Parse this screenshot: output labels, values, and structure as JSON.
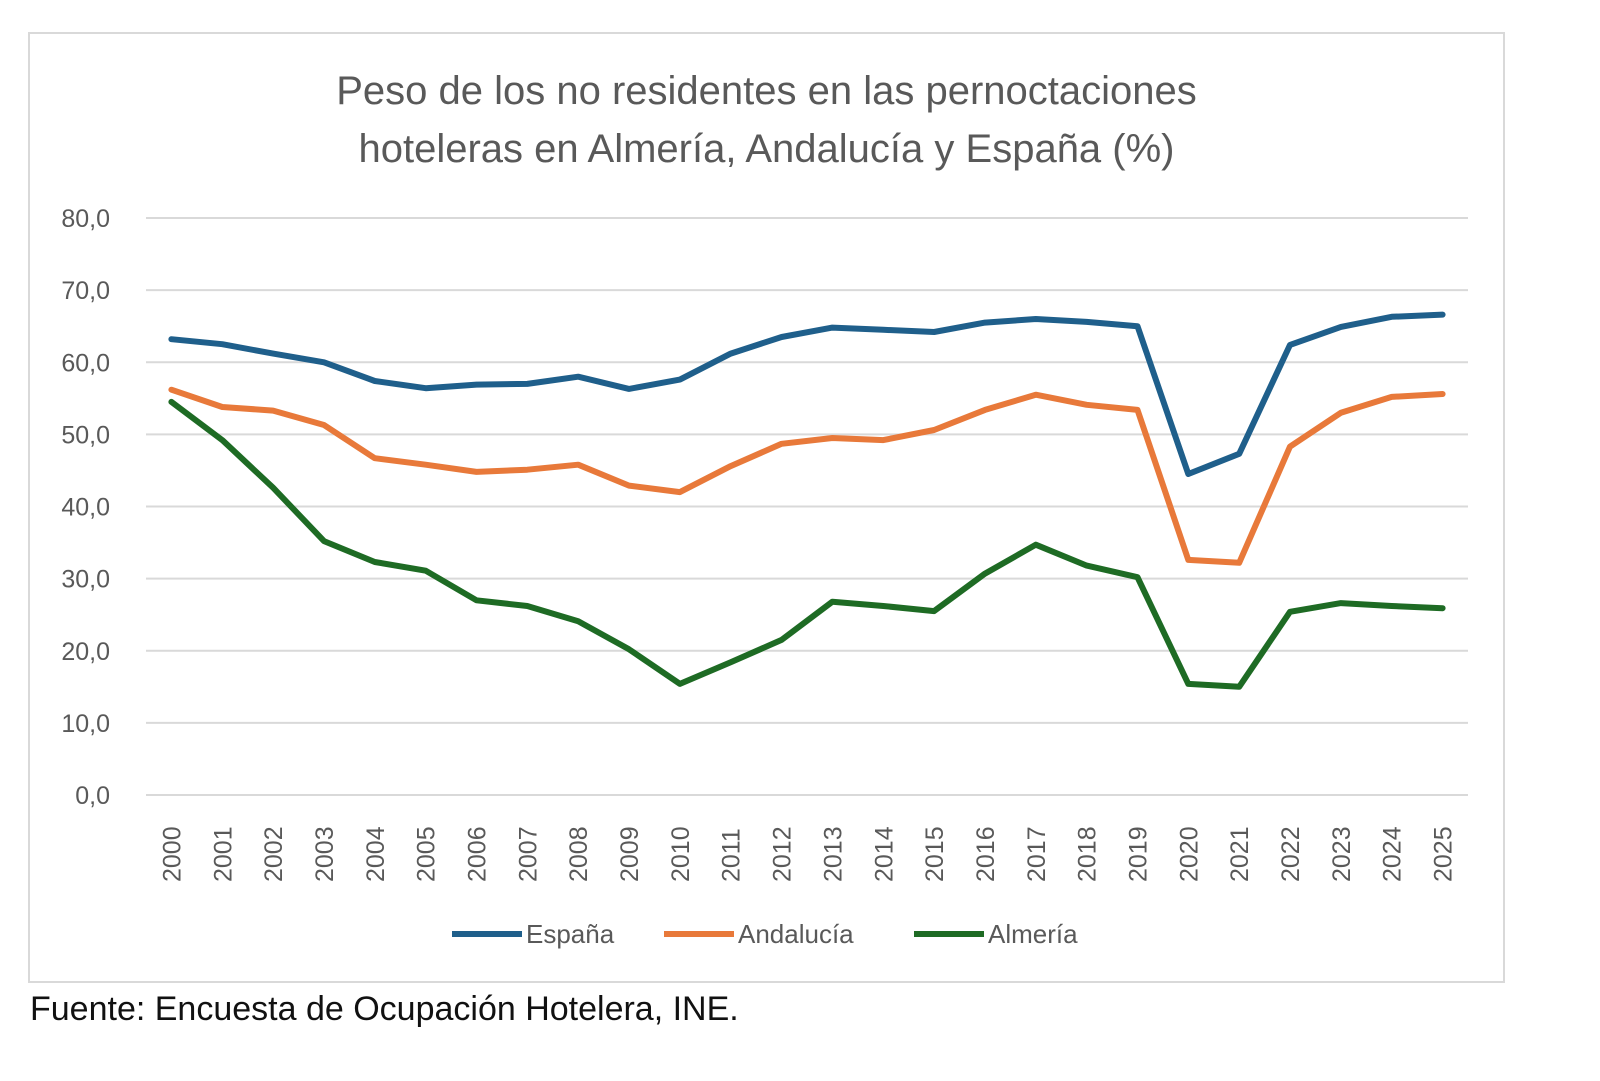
{
  "chart_data": {
    "type": "line",
    "title_lines": [
      "Peso de los no residentes en las pernoctaciones",
      "hoteleras en Almería, Andalucía y España (%)"
    ],
    "xlabel": "",
    "ylabel": "",
    "ylim": [
      0,
      80
    ],
    "yticks": [
      "0,0",
      "10,0",
      "20,0",
      "30,0",
      "40,0",
      "50,0",
      "60,0",
      "70,0",
      "80,0"
    ],
    "grid": true,
    "legend_position": "bottom",
    "categories": [
      "2000",
      "2001",
      "2002",
      "2003",
      "2004",
      "2005",
      "2006",
      "2007",
      "2008",
      "2009",
      "2010",
      "2011",
      "2012",
      "2013",
      "2014",
      "2015",
      "2016",
      "2017",
      "2018",
      "2019",
      "2020",
      "2021",
      "2022",
      "2023",
      "2024",
      "2025"
    ],
    "series": [
      {
        "name": "España",
        "color": "#1f5f8b",
        "values": [
          63.2,
          62.5,
          61.2,
          60.0,
          57.4,
          56.4,
          56.9,
          57.0,
          58.0,
          56.3,
          57.6,
          61.2,
          63.5,
          64.8,
          64.5,
          64.2,
          65.5,
          66.0,
          65.6,
          65.0,
          44.5,
          47.3,
          62.4,
          64.9,
          66.3,
          66.6
        ]
      },
      {
        "name": "Andalucía",
        "color": "#e8793a",
        "values": [
          56.2,
          53.8,
          53.3,
          51.3,
          46.7,
          45.8,
          44.8,
          45.1,
          45.8,
          42.9,
          42.0,
          45.6,
          48.7,
          49.5,
          49.2,
          50.6,
          53.4,
          55.5,
          54.1,
          53.4,
          32.6,
          32.2,
          48.3,
          53.0,
          55.2,
          55.6
        ]
      },
      {
        "name": "Almería",
        "color": "#1e6b24",
        "values": [
          54.5,
          49.2,
          42.6,
          35.2,
          32.3,
          31.1,
          27.0,
          26.2,
          24.1,
          20.2,
          15.4,
          18.4,
          21.5,
          26.8,
          26.2,
          25.5,
          30.7,
          34.7,
          31.8,
          30.2,
          15.4,
          15.0,
          25.4,
          26.6,
          26.2,
          25.9
        ]
      }
    ]
  },
  "source": "Fuente: Encuesta de Ocupación Hotelera, INE."
}
